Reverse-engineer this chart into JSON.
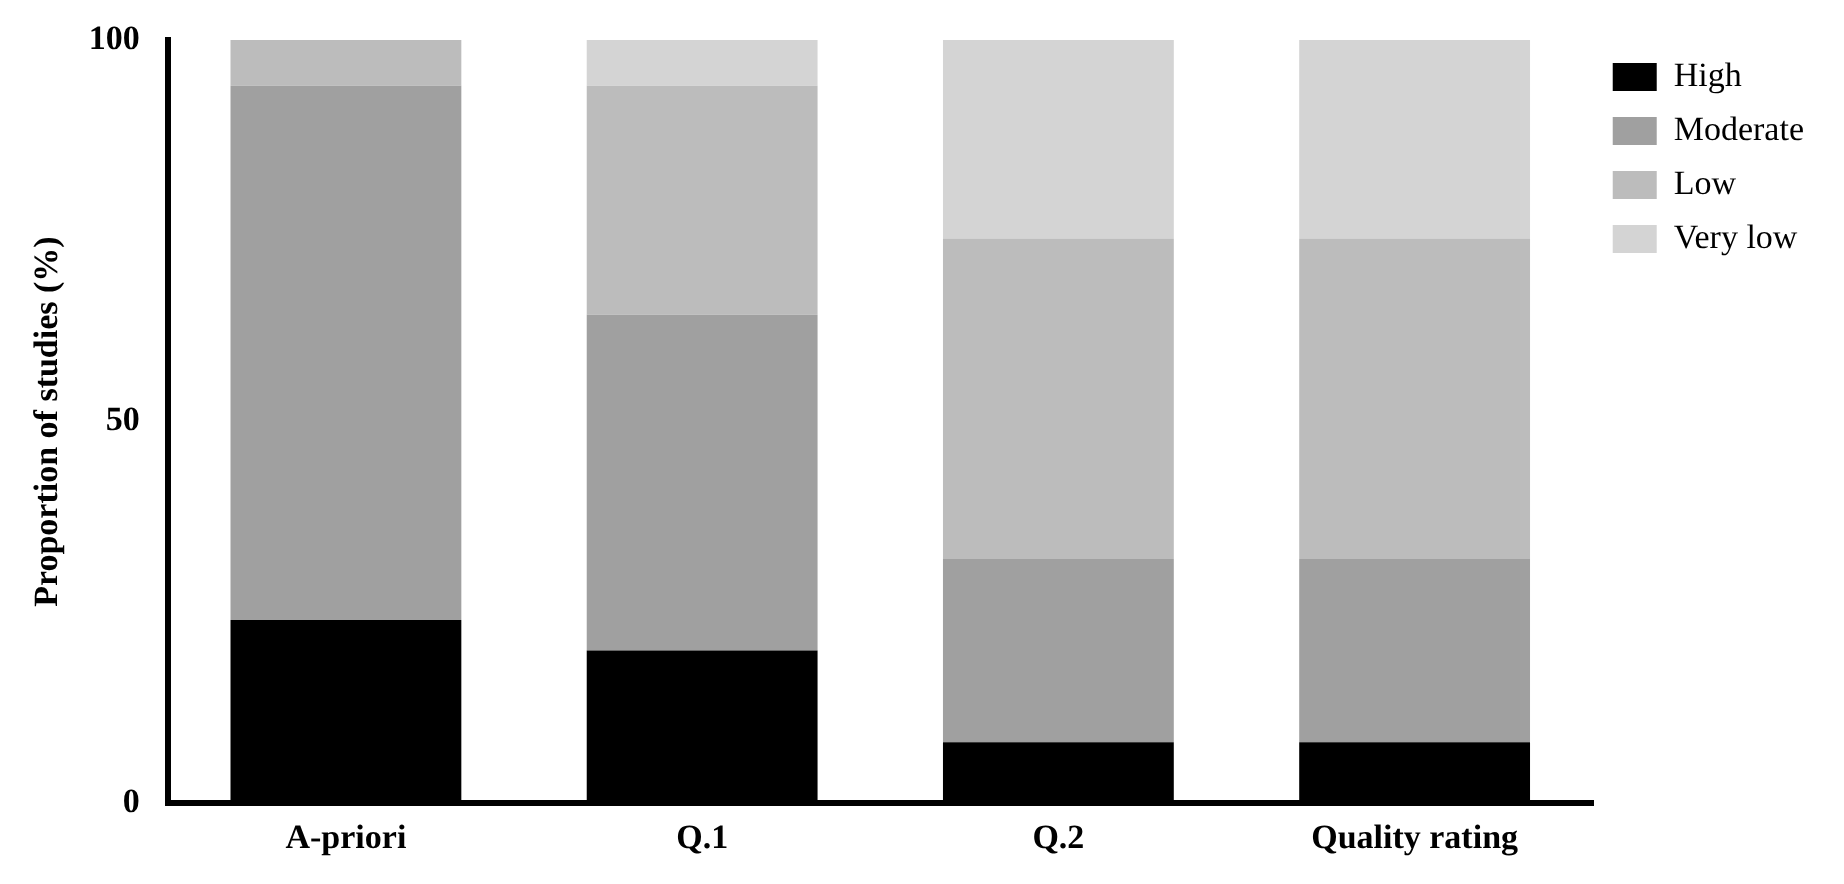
{
  "chart_data": {
    "type": "bar",
    "stacked": true,
    "ylabel": "Proportion of studies (%)",
    "categories": [
      "A-priori",
      "Q.1",
      "Q.2",
      "Quality rating"
    ],
    "series": [
      {
        "name": "High",
        "color": "#000000",
        "values": [
          24,
          20,
          8,
          8
        ]
      },
      {
        "name": "Moderate",
        "color": "#a0a0a0",
        "values": [
          70,
          44,
          24,
          24
        ]
      },
      {
        "name": "Low",
        "color": "#bcbcbc",
        "values": [
          6,
          30,
          42,
          42
        ]
      },
      {
        "name": "Very low",
        "color": "#d4d4d4",
        "values": [
          0,
          6,
          26,
          26
        ]
      }
    ],
    "ylim": [
      0,
      100
    ],
    "yticks": [
      0,
      50,
      100
    ],
    "grid": false,
    "legend": "top right"
  }
}
